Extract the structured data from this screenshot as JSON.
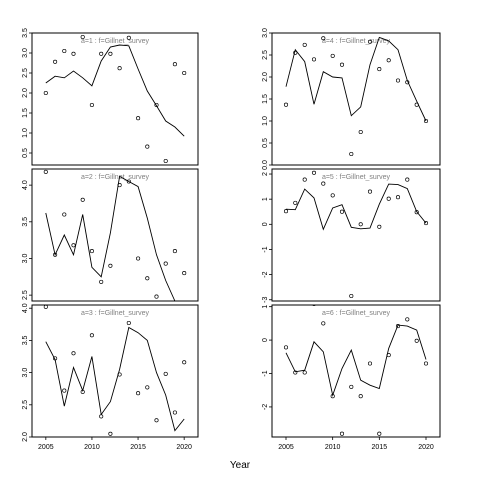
{
  "figure": {
    "xlabel": "Year"
  },
  "chart_data": [
    {
      "type": "line",
      "title": "a=1  :  f=Gillnet_survey",
      "xlim": [
        2003.5,
        2021.5
      ],
      "ylim": [
        0.2,
        3.5
      ],
      "xticks": [],
      "yticks": [
        0.5,
        1.0,
        1.5,
        2.0,
        2.5,
        3.0,
        3.5
      ],
      "ytick_labels": [
        "0.5",
        "1.0",
        "1.5",
        "2.0",
        "2.5",
        "3.0",
        "3.5"
      ],
      "series": [
        {
          "kind": "line",
          "x": [
            2005,
            2006,
            2007,
            2008,
            2009,
            2010,
            2011,
            2012,
            2013,
            2014,
            2015,
            2016,
            2017,
            2018,
            2019,
            2020
          ],
          "y": [
            2.25,
            2.42,
            2.38,
            2.55,
            2.38,
            2.18,
            2.8,
            3.15,
            3.2,
            3.18,
            2.6,
            2.05,
            1.68,
            1.3,
            1.15,
            0.92
          ]
        },
        {
          "kind": "points",
          "x": [
            2005,
            2006,
            2007,
            2008,
            2009,
            2010,
            2011,
            2012,
            2013,
            2014,
            2015,
            2016,
            2017,
            2018,
            2019,
            2020
          ],
          "y": [
            2.0,
            2.78,
            3.05,
            2.98,
            3.4,
            1.7,
            2.98,
            2.98,
            2.62,
            3.38,
            1.37,
            0.66,
            1.7,
            0.3,
            2.72,
            2.5
          ]
        }
      ]
    },
    {
      "type": "line",
      "title": "a=4  :  f=Gillnet_survey",
      "xlim": [
        2003.5,
        2021.5
      ],
      "ylim": [
        0.0,
        3.0
      ],
      "xticks": [],
      "yticks": [
        0.0,
        0.5,
        1.0,
        1.5,
        2.0,
        2.5,
        3.0
      ],
      "ytick_labels": [
        "0.0",
        "0.5",
        "1.0",
        "1.5",
        "2.0",
        "2.5",
        "3.0"
      ],
      "series": [
        {
          "kind": "line",
          "x": [
            2005,
            2006,
            2007,
            2008,
            2009,
            2010,
            2011,
            2012,
            2013,
            2014,
            2015,
            2016,
            2017,
            2018,
            2019,
            2020
          ],
          "y": [
            1.78,
            2.62,
            2.35,
            1.38,
            2.12,
            2.0,
            1.98,
            1.12,
            1.32,
            2.28,
            2.9,
            2.82,
            2.62,
            1.92,
            1.45,
            1.0
          ]
        },
        {
          "kind": "points",
          "x": [
            2005,
            2006,
            2007,
            2008,
            2009,
            2010,
            2011,
            2012,
            2013,
            2014,
            2015,
            2016,
            2017,
            2018,
            2019,
            2020
          ],
          "y": [
            1.37,
            2.55,
            2.73,
            2.4,
            2.88,
            2.48,
            2.28,
            0.25,
            0.75,
            2.8,
            2.18,
            2.38,
            1.92,
            1.88,
            1.37,
            1.0
          ]
        }
      ]
    },
    {
      "type": "line",
      "title": "a=2  :  f=Gillnet_survey",
      "xlim": [
        2003.5,
        2021.5
      ],
      "ylim": [
        2.42,
        4.22
      ],
      "xticks": [],
      "yticks": [
        2.5,
        3.0,
        3.5,
        4.0
      ],
      "ytick_labels": [
        "2.5",
        "3.0",
        "3.5",
        "4.0"
      ],
      "series": [
        {
          "kind": "line",
          "x": [
            2005,
            2006,
            2007,
            2008,
            2009,
            2010,
            2011,
            2012,
            2013,
            2014,
            2015,
            2016,
            2017,
            2018,
            2019,
            2020
          ],
          "y": [
            3.62,
            3.05,
            3.32,
            3.05,
            3.6,
            2.88,
            2.75,
            3.35,
            4.12,
            4.05,
            3.98,
            3.55,
            3.05,
            2.7,
            2.42,
            2.42
          ]
        },
        {
          "kind": "points",
          "x": [
            2005,
            2006,
            2007,
            2008,
            2009,
            2010,
            2011,
            2012,
            2013,
            2014,
            2015,
            2016,
            2017,
            2018,
            2019,
            2020
          ],
          "y": [
            4.18,
            3.05,
            3.6,
            3.18,
            3.8,
            3.1,
            2.68,
            2.9,
            4.0,
            4.05,
            3.0,
            2.73,
            2.48,
            2.93,
            3.1,
            2.8
          ]
        }
      ]
    },
    {
      "type": "line",
      "title": "a=5  :  f=Gillnet_survey",
      "xlim": [
        2003.5,
        2021.5
      ],
      "ylim": [
        -3.05,
        2.2
      ],
      "xticks": [],
      "yticks": [
        -3,
        -2,
        -1,
        0,
        1,
        2
      ],
      "ytick_labels": [
        "-3",
        "-2",
        "-1",
        "0",
        "1",
        "2"
      ],
      "series": [
        {
          "kind": "line",
          "x": [
            2005,
            2006,
            2007,
            2008,
            2009,
            2010,
            2011,
            2012,
            2013,
            2014,
            2015,
            2016,
            2017,
            2018,
            2019,
            2020
          ],
          "y": [
            0.6,
            0.58,
            1.4,
            1.05,
            -0.2,
            0.65,
            0.78,
            -0.12,
            -0.18,
            -0.15,
            0.8,
            1.6,
            1.58,
            1.42,
            0.5,
            0.05
          ]
        },
        {
          "kind": "points",
          "x": [
            2005,
            2006,
            2007,
            2008,
            2009,
            2010,
            2011,
            2012,
            2013,
            2014,
            2015,
            2016,
            2017,
            2018,
            2019,
            2020
          ],
          "y": [
            0.52,
            0.85,
            1.78,
            2.05,
            1.62,
            1.15,
            0.5,
            -2.85,
            0.0,
            1.3,
            -0.1,
            1.02,
            1.08,
            1.78,
            0.48,
            0.05
          ]
        }
      ]
    },
    {
      "type": "line",
      "title": "a=3  :  f=Gillnet_survey",
      "xlim": [
        2003.5,
        2021.5
      ],
      "ylim": [
        2.0,
        4.05
      ],
      "xticks": [
        2005,
        2010,
        2015,
        2020
      ],
      "xtick_labels": [
        "2005",
        "2010",
        "2015",
        "2020"
      ],
      "yticks": [
        2.0,
        2.5,
        3.0,
        3.5,
        4.0
      ],
      "ytick_labels": [
        "2.0",
        "2.5",
        "3.0",
        "3.5",
        "4.0"
      ],
      "series": [
        {
          "kind": "line",
          "x": [
            2005,
            2006,
            2007,
            2008,
            2009,
            2010,
            2011,
            2012,
            2013,
            2014,
            2015,
            2016,
            2017,
            2018,
            2019,
            2020
          ],
          "y": [
            3.48,
            3.2,
            2.48,
            3.08,
            2.72,
            3.25,
            2.35,
            2.55,
            3.05,
            3.7,
            3.62,
            3.5,
            3.0,
            2.65,
            2.1,
            2.28
          ]
        },
        {
          "kind": "points",
          "x": [
            2005,
            2006,
            2007,
            2008,
            2009,
            2010,
            2011,
            2012,
            2013,
            2014,
            2015,
            2016,
            2017,
            2018,
            2019,
            2020
          ],
          "y": [
            4.02,
            3.22,
            2.72,
            3.3,
            2.7,
            3.58,
            2.32,
            2.05,
            2.97,
            3.77,
            2.68,
            2.77,
            2.26,
            2.98,
            2.38,
            3.16
          ]
        }
      ]
    },
    {
      "type": "line",
      "title": "a=6  :  f=Gillnet_survey",
      "xlim": [
        2003.5,
        2021.5
      ],
      "ylim": [
        -2.9,
        1.05
      ],
      "xticks": [
        2005,
        2010,
        2015,
        2020
      ],
      "xtick_labels": [
        "2005",
        "2010",
        "2015",
        "2020"
      ],
      "yticks": [
        -2,
        -1,
        0,
        1
      ],
      "ytick_labels": [
        "-2",
        "-1",
        "0",
        "1"
      ],
      "series": [
        {
          "kind": "line",
          "x": [
            2005,
            2006,
            2007,
            2008,
            2009,
            2010,
            2011,
            2012,
            2013,
            2014,
            2015,
            2016,
            2017,
            2018,
            2019,
            2020
          ],
          "y": [
            -0.38,
            -0.95,
            -0.9,
            -0.05,
            -0.35,
            -1.65,
            -0.85,
            -0.3,
            -1.2,
            -1.35,
            -1.45,
            -0.25,
            0.45,
            0.42,
            0.3,
            -0.58
          ]
        },
        {
          "kind": "points",
          "x": [
            2005,
            2006,
            2007,
            2008,
            2009,
            2010,
            2011,
            2012,
            2013,
            2014,
            2015,
            2016,
            2017,
            2018,
            2019,
            2020
          ],
          "y": [
            -0.22,
            -0.97,
            -0.97,
            1.08,
            0.5,
            -1.68,
            -2.8,
            -1.4,
            -1.68,
            -0.7,
            -2.8,
            -0.45,
            0.42,
            0.62,
            -0.02,
            -0.7
          ]
        }
      ]
    }
  ]
}
